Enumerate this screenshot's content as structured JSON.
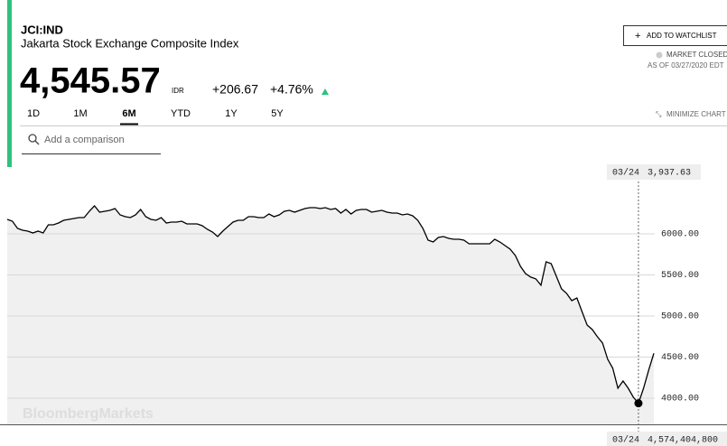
{
  "header": {
    "ticker": "JCI:IND",
    "name": "Jakarta Stock Exchange Composite Index",
    "price": "4,545.57",
    "currency": "IDR",
    "change": "+206.67",
    "change_pct": "+4.76%",
    "watchlist": "ADD TO WATCHLIST",
    "status": "MARKET CLOSED",
    "as_of": "AS OF 03/27/2020 EDT",
    "ranges": [
      "1D",
      "1M",
      "6M",
      "YTD",
      "1Y",
      "5Y"
    ],
    "active_range": "6M",
    "comparison": "Add a comparison",
    "minimize": "MINIMIZE CHART",
    "watermark": "BloombergMarkets"
  },
  "chart_data": {
    "type": "line",
    "color": "#000000",
    "area_color": "#f0f0f0",
    "categories": [
      null,
      null,
      null,
      null,
      null,
      null,
      null,
      null,
      null,
      null,
      null,
      null,
      null,
      null,
      null,
      null,
      null,
      null,
      null,
      null,
      null,
      null,
      null,
      null,
      null,
      null,
      null,
      null,
      null,
      null,
      null,
      null,
      null,
      null,
      null,
      null,
      null,
      null,
      null,
      null,
      null,
      null,
      null,
      null,
      null,
      null,
      null,
      null,
      null,
      null,
      null,
      null,
      null,
      null,
      null,
      null,
      null,
      null,
      null,
      null,
      null,
      null,
      null,
      null,
      null,
      null,
      null,
      null,
      null,
      null,
      null,
      null,
      null,
      null,
      null,
      null,
      null,
      null,
      null,
      null,
      null,
      null,
      null,
      null,
      null,
      null,
      null,
      null,
      null,
      null,
      null,
      null,
      null,
      null,
      null,
      null,
      null,
      null,
      null,
      null,
      null,
      null,
      null,
      null,
      null,
      null,
      null,
      null,
      null,
      null,
      null,
      null,
      null,
      null,
      null,
      null,
      null,
      null,
      null,
      null,
      null,
      null,
      null,
      "03/24",
      null,
      null,
      null
    ],
    "values": [
      6176,
      6154,
      6066,
      6044,
      6033,
      6011,
      6033,
      6011,
      6110,
      6110,
      6132,
      6165,
      6176,
      6187,
      6198,
      6198,
      6275,
      6341,
      6264,
      6275,
      6286,
      6308,
      6231,
      6209,
      6198,
      6231,
      6297,
      6209,
      6176,
      6165,
      6198,
      6132,
      6143,
      6143,
      6154,
      6121,
      6121,
      6121,
      6099,
      6055,
      6022,
      5967,
      6033,
      6088,
      6143,
      6165,
      6165,
      6209,
      6209,
      6198,
      6198,
      6242,
      6209,
      6231,
      6275,
      6286,
      6264,
      6286,
      6308,
      6319,
      6319,
      6308,
      6319,
      6297,
      6308,
      6253,
      6297,
      6242,
      6286,
      6297,
      6297,
      6264,
      6275,
      6286,
      6264,
      6253,
      6253,
      6231,
      6242,
      6220,
      6165,
      6066,
      5923,
      5901,
      5956,
      5967,
      5945,
      5934,
      5934,
      5923,
      5879,
      5879,
      5879,
      5879,
      5879,
      5934,
      5901,
      5857,
      5813,
      5736,
      5604,
      5516,
      5473,
      5451,
      5374,
      5659,
      5637,
      5484,
      5330,
      5275,
      5187,
      5220,
      5055,
      4890,
      4835,
      4747,
      4670,
      4473,
      4363,
      4121,
      4209,
      4121,
      4011,
      3937.63,
      4121,
      4341,
      4545.57
    ],
    "crosshair": {
      "value_label": "3,937.63",
      "volume_label": "4,574,404,800"
    },
    "ylim": [
      3681,
      6813
    ],
    "yticks": [
      {
        "value": 4000,
        "label": "4000.00"
      },
      {
        "value": 4500,
        "label": "4500.00"
      },
      {
        "value": 5000,
        "label": "5000.00"
      },
      {
        "value": 5500,
        "label": "5500.00"
      },
      {
        "value": 6000,
        "label": "6000.00"
      }
    ],
    "grid": true
  }
}
